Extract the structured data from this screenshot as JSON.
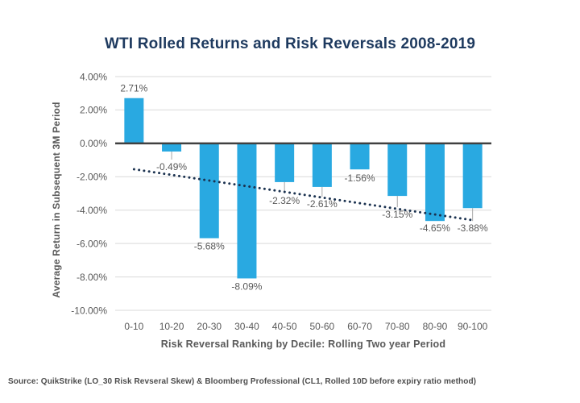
{
  "page": {
    "title": "WTI Rolled Returns and Risk Reversals 2008-2019",
    "source_note": "Source: QuikStrike (LO_30 Risk Revseral Skew) & Bloomberg Professional (CL1, Rolled 10D before expiry ratio method)"
  },
  "colors": {
    "background": "#FFFFFF",
    "bar": "#29A9E1",
    "title_text": "#1E3A5F",
    "axis_text": "#595959",
    "data_label_text": "#595959",
    "source_text": "#4D4D4D",
    "gridline": "#D9D9D9",
    "zero_line": "#404040",
    "leader_line": "#A6A6A6",
    "trendline": "#1B3250"
  },
  "chart_data": {
    "type": "bar",
    "title": "WTI Rolled Returns and Risk Reversals 2008-2019",
    "xlabel": "Risk Reversal Ranking by Decile: Rolling Two year Period",
    "ylabel": "Average Return in Subsequent 3M Period",
    "categories": [
      "0-10",
      "10-20",
      "20-30",
      "30-40",
      "40-50",
      "50-60",
      "60-70",
      "70-80",
      "80-90",
      "90-100"
    ],
    "values": [
      2.71,
      -0.49,
      -5.68,
      -8.09,
      -2.32,
      -2.61,
      -1.56,
      -3.15,
      -4.65,
      -3.88
    ],
    "value_labels": [
      "2.71%",
      "-0.49%",
      "-5.68%",
      "-8.09%",
      "-2.32%",
      "-2.61%",
      "-1.56%",
      "-3.15%",
      "-4.65%",
      "-3.88%"
    ],
    "ylim": [
      -10,
      4
    ],
    "yticks": [
      4,
      2,
      0,
      -2,
      -4,
      -6,
      -8,
      -10
    ],
    "ytick_labels": [
      "4.00%",
      "2.00%",
      "0.00%",
      "-2.00%",
      "-4.00%",
      "-6.00%",
      "-8.00%",
      "-10.00%"
    ],
    "grid": true,
    "legend": false,
    "trendline": {
      "style": "dotted",
      "start_value": -1.55,
      "end_value": -4.6
    },
    "label_layout": {
      "leader_lengths": [
        0,
        10,
        0,
        0,
        14,
        12,
        0,
        14,
        0,
        16
      ],
      "baseline_offsets": [
        -8,
        23,
        14,
        14,
        27,
        25,
        15,
        27,
        13,
        29
      ]
    }
  }
}
